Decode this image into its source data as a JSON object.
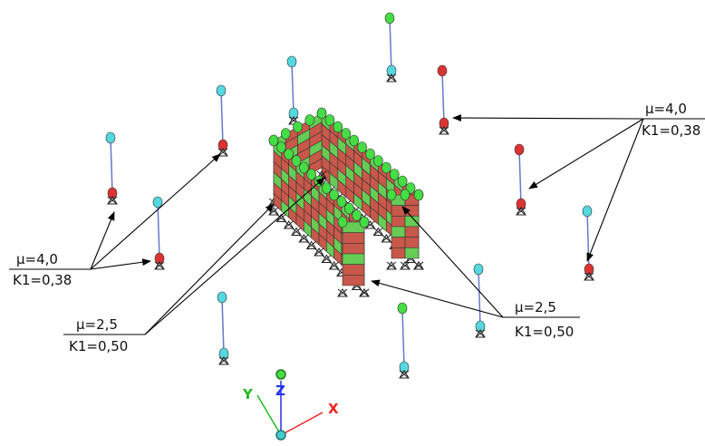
{
  "callouts": [
    {
      "mu": "μ=4,0",
      "k": "K1=0,38"
    },
    {
      "mu": "μ=2,5",
      "k": "K1=0,50"
    },
    {
      "mu": "μ=4,0",
      "k": "K1=0,38"
    },
    {
      "mu": "μ=2,5",
      "k": "K1=0,50"
    }
  ],
  "axes": {
    "x": "X",
    "y": "Y",
    "z": "Z"
  }
}
